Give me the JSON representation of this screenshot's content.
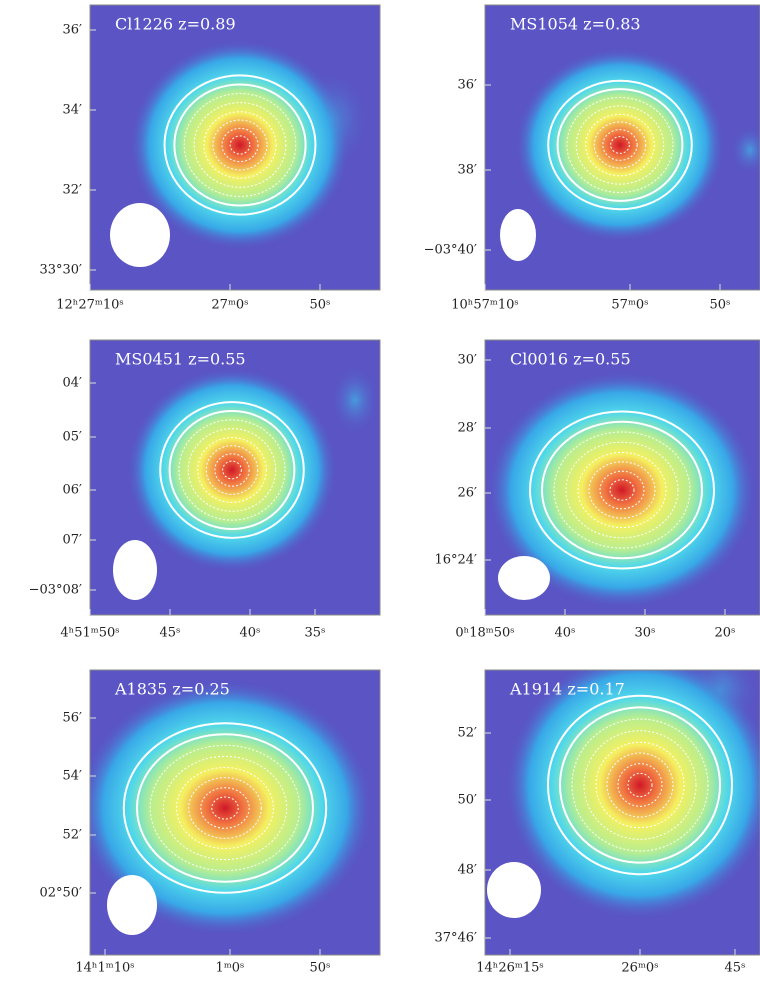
{
  "panels": [
    {
      "title": "Cl1226  z=0.89",
      "yticks": [
        "36′",
        "34′",
        "32′",
        "33°30′"
      ],
      "xticks": [
        "12ʰ27ᵐ10ˢ",
        "27ᵐ0ˢ",
        "50ˢ"
      ]
    },
    {
      "title": "MS1054  z=0.83",
      "yticks": [
        "36′",
        "38′",
        "−03°40′"
      ],
      "xticks": [
        "10ʰ57ᵐ10ˢ",
        "57ᵐ0ˢ",
        "50ˢ"
      ]
    },
    {
      "title": "MS0451  z=0.55",
      "yticks": [
        "04′",
        "05′",
        "06′",
        "07′",
        "−03°08′"
      ],
      "xticks": [
        "4ʰ51ᵐ50ˢ",
        "45ˢ",
        "40ˢ",
        "35ˢ"
      ]
    },
    {
      "title": "Cl0016  z=0.55",
      "yticks": [
        "30′",
        "28′",
        "26′",
        "16°24′"
      ],
      "xticks": [
        "0ʰ18ᵐ50ˢ",
        "40ˢ",
        "30ˢ",
        "20ˢ"
      ]
    },
    {
      "title": "A1835  z=0.25",
      "yticks": [
        "56′",
        "54′",
        "52′",
        "02°50′"
      ],
      "xticks": [
        "14ʰ1ᵐ10ˢ",
        "1ᵐ0ˢ",
        "50ˢ"
      ]
    },
    {
      "title": "A1914  z=0.17",
      "yticks": [
        "52′",
        "50′",
        "48′",
        "37°46′"
      ],
      "xticks": [
        "14ʰ26ᵐ15ˢ",
        "26ᵐ0ˢ",
        "45ˢ"
      ]
    }
  ]
}
